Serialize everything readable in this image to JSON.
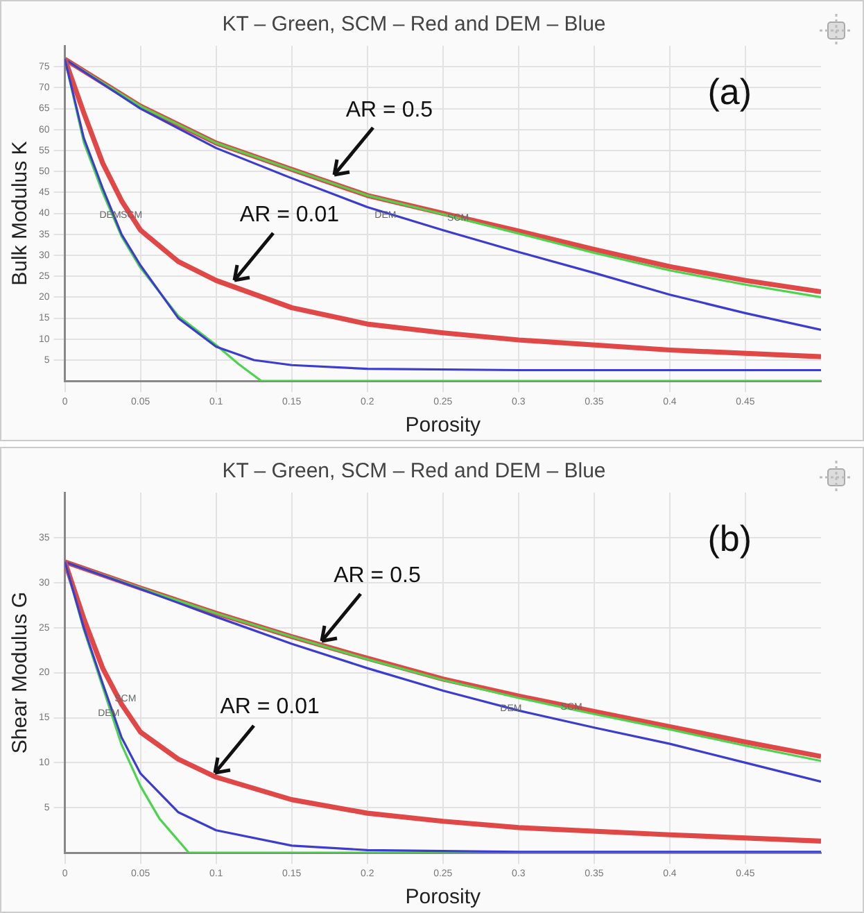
{
  "chart_data": [
    {
      "type": "line",
      "title": "KT – Green, SCM – Red and DEM – Blue",
      "xlabel": "Porosity",
      "ylabel": "Bulk Modulus K",
      "xlim": [
        0,
        0.5
      ],
      "xticks": [
        0,
        0.05,
        0.1,
        0.15,
        0.2,
        0.25,
        0.3,
        0.35,
        0.4,
        0.45
      ],
      "ylim": [
        0,
        80
      ],
      "yticks": [
        5,
        10,
        15,
        20,
        25,
        30,
        35,
        40,
        45,
        50,
        55,
        60,
        65,
        70,
        75
      ],
      "grid": true,
      "annotations": [
        "(a)",
        {
          "text": "AR = 0.5",
          "x": 0.176,
          "y": 48.4
        },
        {
          "text": "AR = 0.01",
          "x": 0.11,
          "y": 23.4
        },
        {
          "text": "DEM",
          "x": 0.03,
          "y": 39.5
        },
        {
          "text": "SCM",
          "x": 0.044,
          "y": 39.5
        },
        {
          "text": "DEM",
          "x": 0.212,
          "y": 39.5
        },
        {
          "text": "SCM",
          "x": 0.26,
          "y": 39
        }
      ],
      "series": [
        {
          "color": "#e04848",
          "x": [
            0,
            0.05,
            0.1,
            0.15,
            0.2,
            0.25,
            0.3,
            0.35,
            0.4,
            0.45,
            0.5
          ],
          "values": [
            76.8,
            65.6,
            56.8,
            50.5,
            44.3,
            40,
            35.8,
            31.4,
            27.3,
            24,
            21.3
          ]
        },
        {
          "color": "#4cd44c",
          "x": [
            0,
            0.05,
            0.1,
            0.15,
            0.2,
            0.25,
            0.3,
            0.35,
            0.4,
            0.45,
            0.5
          ],
          "values": [
            76.8,
            65.6,
            56.8,
            50.5,
            44.3,
            39.8,
            35.2,
            30.6,
            26.4,
            23,
            20
          ]
        },
        {
          "color": "#3c3cd0",
          "x": [
            0,
            0.05,
            0.1,
            0.15,
            0.2,
            0.25,
            0.3,
            0.35,
            0.4,
            0.45,
            0.5
          ],
          "values": [
            76.8,
            65,
            55.6,
            48.4,
            41.5,
            36,
            30.8,
            25.8,
            20.6,
            16.2,
            12.2
          ]
        },
        {
          "color": "#e04848",
          "x": [
            0,
            0.0125,
            0.025,
            0.0375,
            0.05,
            0.075,
            0.1,
            0.15,
            0.2,
            0.25,
            0.3,
            0.4,
            0.5
          ],
          "values": [
            76.8,
            64,
            52,
            43,
            36,
            28.5,
            24,
            17.5,
            13.6,
            11.5,
            9.8,
            7.4,
            5.8
          ]
        },
        {
          "color": "#4cd44c",
          "x": [
            0,
            0.0125,
            0.025,
            0.0375,
            0.05,
            0.075,
            0.1,
            0.115,
            0.13,
            0.5
          ],
          "values": [
            76.8,
            57,
            45,
            34.5,
            27,
            15.5,
            8.6,
            4,
            0,
            0
          ]
        },
        {
          "color": "#3c3cd0",
          "x": [
            0,
            0.0125,
            0.025,
            0.0375,
            0.05,
            0.075,
            0.1,
            0.125,
            0.15,
            0.2,
            0.3,
            0.4,
            0.5
          ],
          "values": [
            76.8,
            58,
            46,
            35,
            27.6,
            15,
            8.2,
            5,
            3.8,
            2.9,
            2.6,
            2.6,
            2.6
          ]
        }
      ]
    },
    {
      "type": "line",
      "title": "KT – Green, SCM – Red and DEM – Blue",
      "xlabel": "Porosity",
      "ylabel": "Shear Modulus G",
      "xlim": [
        0,
        0.5
      ],
      "xticks": [
        0,
        0.05,
        0.1,
        0.15,
        0.2,
        0.25,
        0.3,
        0.35,
        0.4,
        0.45
      ],
      "ylim": [
        0,
        40
      ],
      "yticks": [
        5,
        10,
        15,
        20,
        25,
        30,
        35
      ],
      "grid": true,
      "annotations": [
        "(b)",
        {
          "text": "AR = 0.5",
          "x": 0.168,
          "y": 23.2
        },
        {
          "text": "AR = 0.01",
          "x": 0.097,
          "y": 8.6
        },
        {
          "text": "SCM",
          "x": 0.04,
          "y": 17.1
        },
        {
          "text": "DEM",
          "x": 0.029,
          "y": 15.5
        },
        {
          "text": "DEM",
          "x": 0.295,
          "y": 16
        },
        {
          "text": "SCM",
          "x": 0.335,
          "y": 16.2
        }
      ],
      "series": [
        {
          "color": "#e04848",
          "x": [
            0,
            0.05,
            0.1,
            0.15,
            0.2,
            0.25,
            0.3,
            0.35,
            0.4,
            0.45,
            0.5
          ],
          "values": [
            32.3,
            29.4,
            26.6,
            24,
            21.6,
            19.3,
            17.4,
            15.7,
            14,
            12.3,
            10.7
          ]
        },
        {
          "color": "#4cd44c",
          "x": [
            0,
            0.05,
            0.1,
            0.15,
            0.2,
            0.25,
            0.3,
            0.35,
            0.4,
            0.45,
            0.5
          ],
          "values": [
            32.3,
            29.4,
            26.6,
            24,
            21.5,
            19.2,
            17.2,
            15.4,
            13.7,
            11.9,
            10.2
          ]
        },
        {
          "color": "#3c3cd0",
          "x": [
            0,
            0.05,
            0.1,
            0.15,
            0.2,
            0.25,
            0.3,
            0.35,
            0.4,
            0.45,
            0.5
          ],
          "values": [
            32.3,
            29.3,
            26.2,
            23.2,
            20.5,
            18,
            15.8,
            13.9,
            12.1,
            10,
            7.9
          ]
        },
        {
          "color": "#e04848",
          "x": [
            0,
            0.0125,
            0.025,
            0.0375,
            0.05,
            0.075,
            0.1,
            0.15,
            0.2,
            0.25,
            0.3,
            0.4,
            0.5
          ],
          "values": [
            32.3,
            26,
            20.5,
            16.5,
            13.4,
            10.4,
            8.4,
            5.9,
            4.4,
            3.5,
            2.8,
            2,
            1.3
          ]
        },
        {
          "color": "#4cd44c",
          "x": [
            0,
            0.0125,
            0.025,
            0.0375,
            0.05,
            0.0625,
            0.082,
            0.5
          ],
          "values": [
            32.3,
            24.8,
            18.4,
            12,
            7.4,
            3.8,
            0,
            0
          ]
        },
        {
          "color": "#3c3cd0",
          "x": [
            0,
            0.0125,
            0.025,
            0.0375,
            0.05,
            0.075,
            0.1,
            0.15,
            0.2,
            0.3,
            0.5
          ],
          "values": [
            32.3,
            25,
            18.8,
            12.8,
            8.8,
            4.5,
            2.5,
            0.8,
            0.3,
            0.1,
            0.1
          ]
        }
      ]
    }
  ]
}
